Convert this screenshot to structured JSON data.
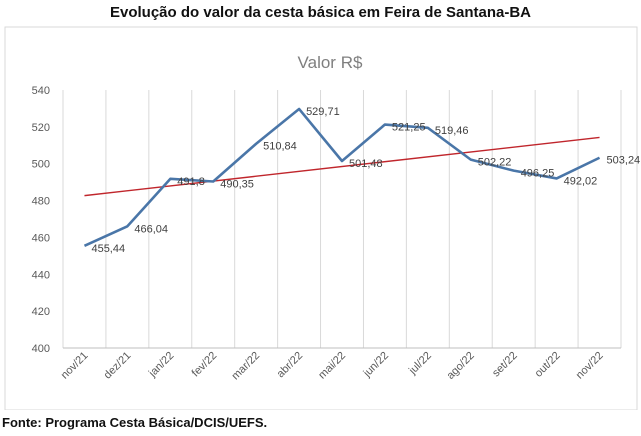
{
  "page_title": "Evolução do valor da cesta básica em Feira de Santana-BA",
  "source": "Fonte: Programa Cesta Básica/DCIS/UEFS.",
  "chart_data": {
    "type": "line",
    "title": "Valor R$",
    "categories": [
      "nov/21",
      "dez/21",
      "jan/22",
      "fev/22",
      "mar/22",
      "abr/22",
      "mai/22",
      "jun/22",
      "jul/22",
      "ago/22",
      "set/22",
      "out/22",
      "nov/22"
    ],
    "series": [
      {
        "values": [
          455.44,
          466.04,
          491.8,
          490.35,
          510.84,
          529.71,
          501.48,
          521.25,
          519.46,
          502.22,
          496.25,
          492.02,
          503.24
        ],
        "labels": [
          "455,44",
          "466,04",
          "491,8",
          "490,35",
          "510,84",
          "529,71",
          "501,48",
          "521,25",
          "519,46",
          "502,22",
          "496,25",
          "492,02",
          "503,24"
        ],
        "color": "#4a76a8"
      }
    ],
    "trendline": {
      "type": "linear",
      "color": "#c0262c"
    },
    "ylim": [
      400,
      540
    ],
    "yticks": [
      "400",
      "420",
      "440",
      "460",
      "480",
      "500",
      "520",
      "540"
    ],
    "grid": "vertical",
    "legend": "none"
  }
}
